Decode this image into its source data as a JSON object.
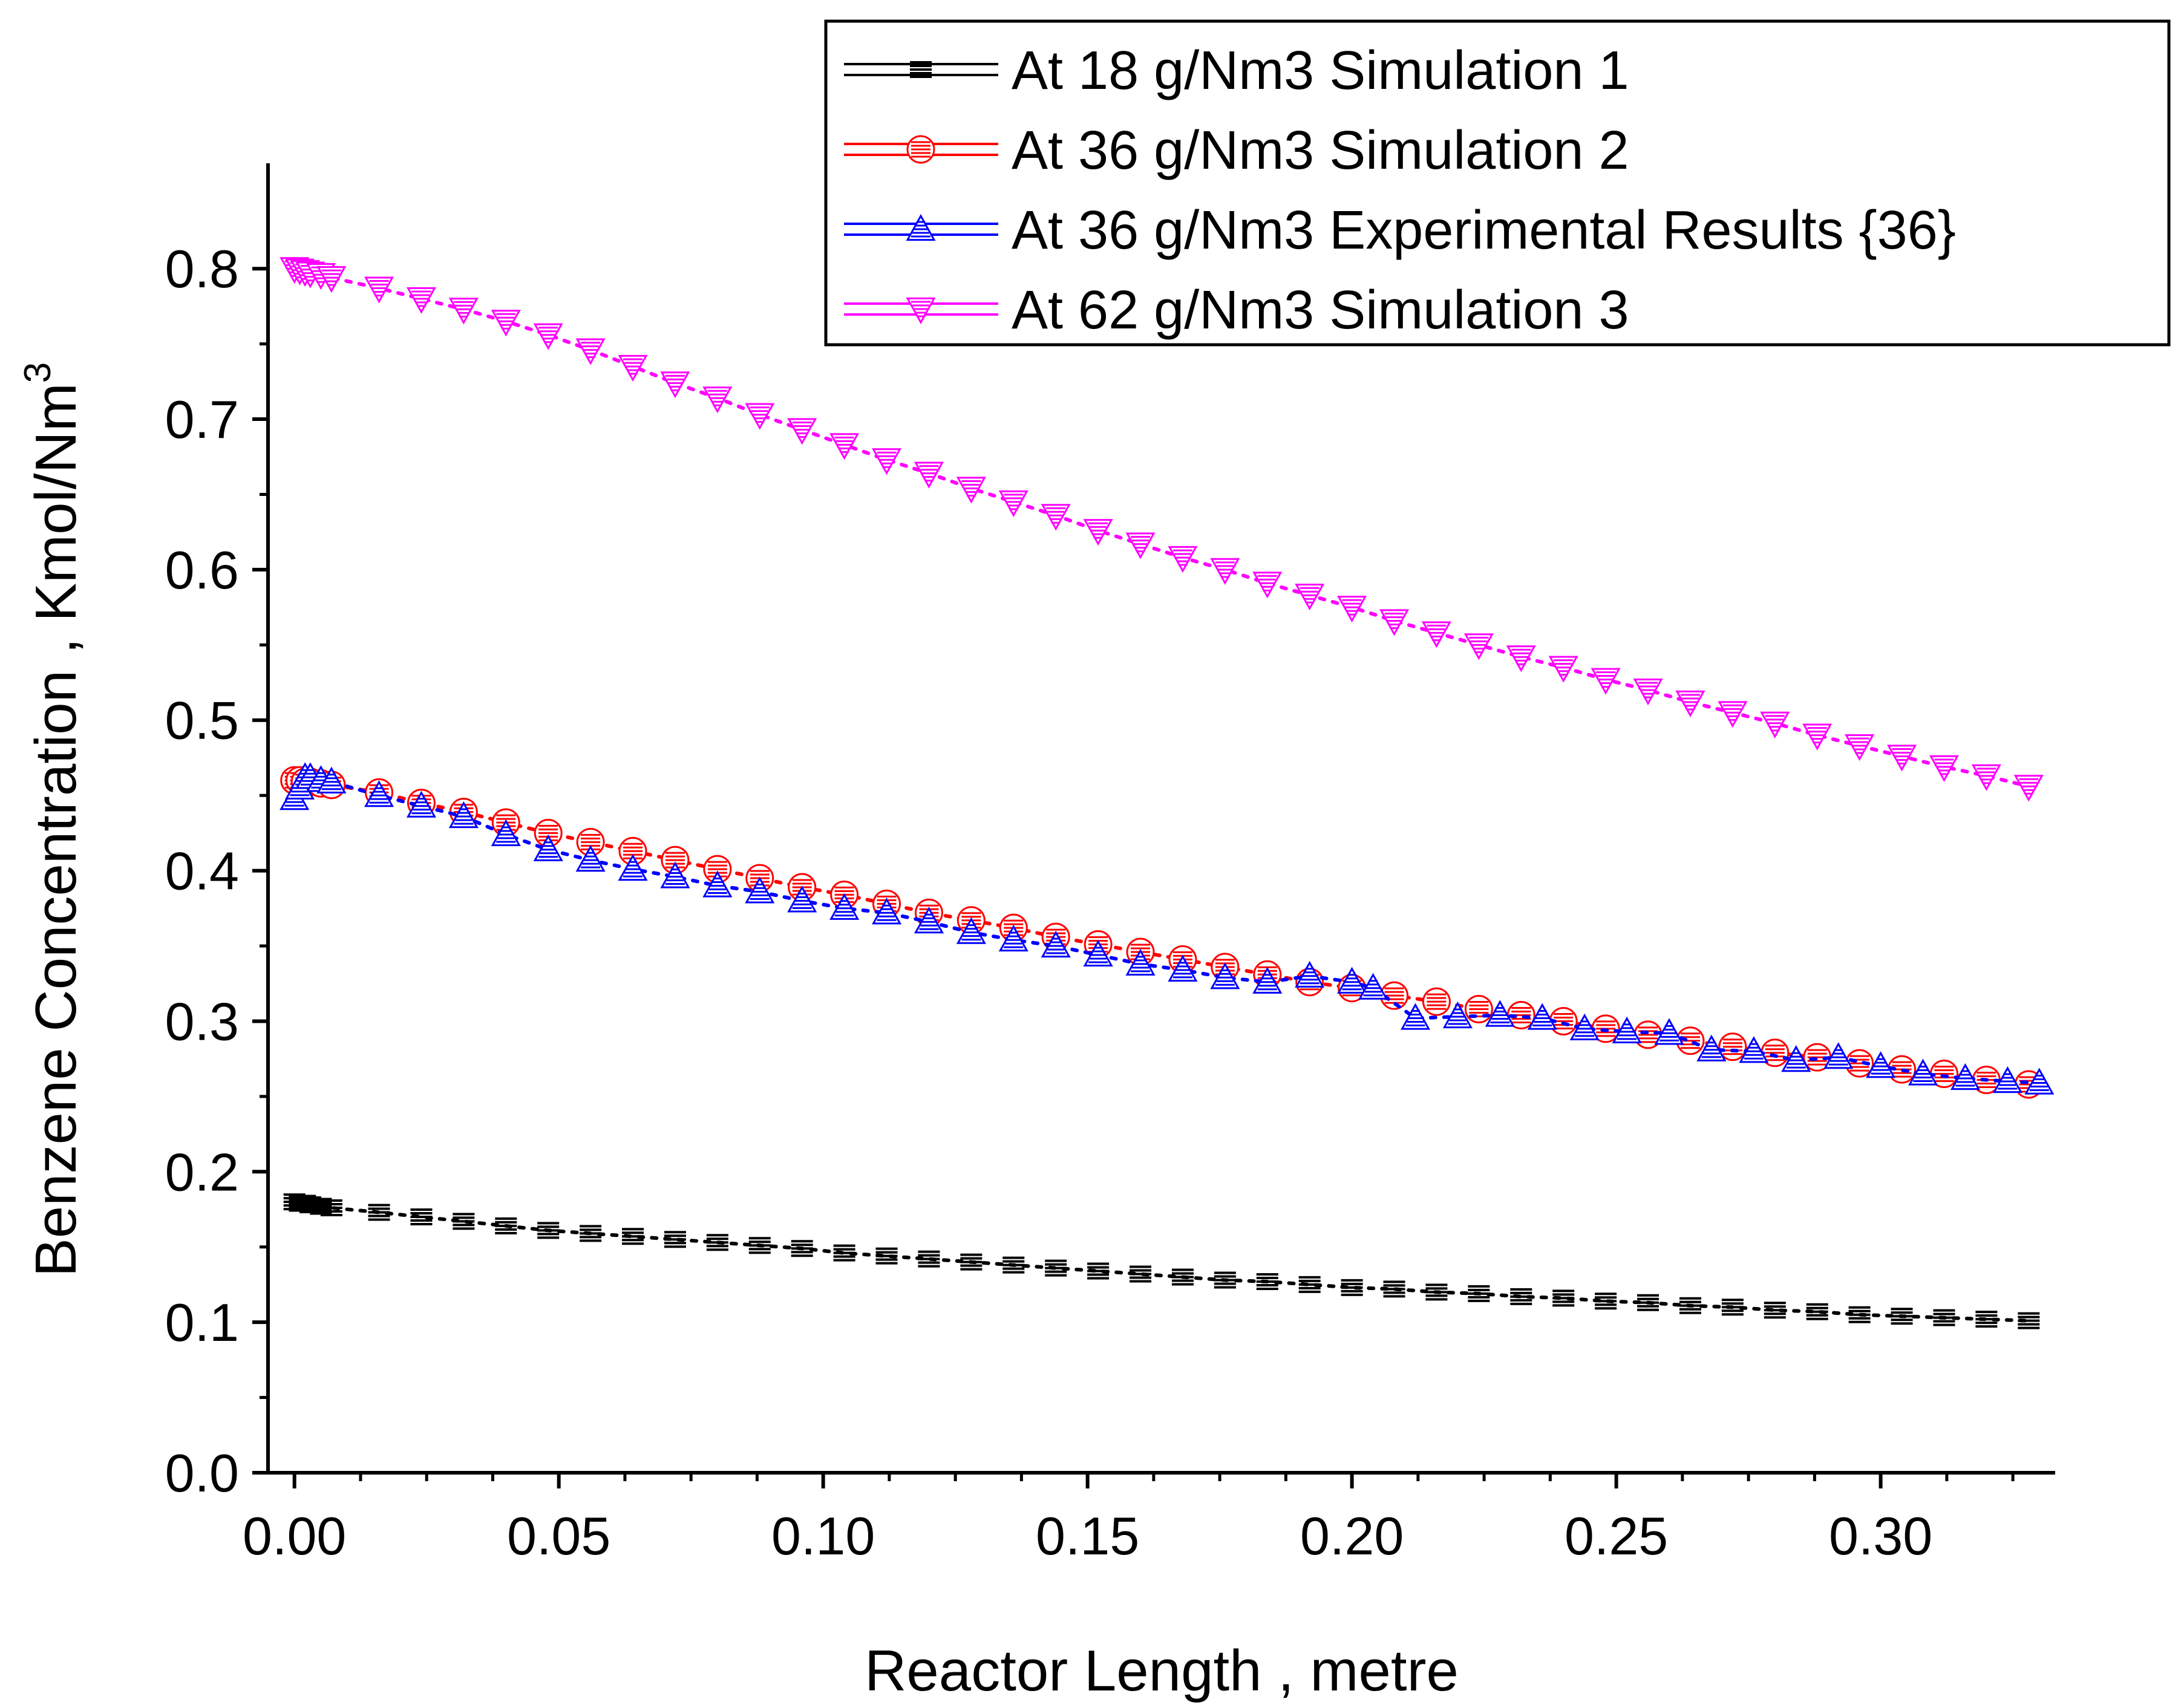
{
  "chart_data": {
    "type": "line",
    "title": "",
    "xlabel": "Reactor Length , metre",
    "ylabel": "Benzene Concentration , Kmol/Nm",
    "ylabel_superscript": "3",
    "xlim": [
      -0.005,
      0.333
    ],
    "ylim": [
      0.0,
      0.87
    ],
    "x_ticks": [
      "0.00",
      "0.05",
      "0.10",
      "0.15",
      "0.20",
      "0.25",
      "0.30"
    ],
    "y_ticks": [
      "0.0",
      "0.1",
      "0.2",
      "0.3",
      "0.4",
      "0.5",
      "0.6",
      "0.7",
      "0.8"
    ],
    "legend_position": "top-right",
    "series": [
      {
        "name": "At 18 g/Nm3 Simulation 1",
        "color": "#000000",
        "marker": "bars",
        "points": [
          [
            0.0,
            0.18
          ],
          [
            0.001,
            0.179
          ],
          [
            0.002,
            0.179
          ],
          [
            0.003,
            0.178
          ],
          [
            0.005,
            0.177
          ],
          [
            0.007,
            0.176
          ],
          [
            0.016,
            0.173
          ],
          [
            0.024,
            0.17
          ],
          [
            0.032,
            0.167
          ],
          [
            0.04,
            0.164
          ],
          [
            0.048,
            0.161
          ],
          [
            0.056,
            0.159
          ],
          [
            0.064,
            0.157
          ],
          [
            0.072,
            0.155
          ],
          [
            0.08,
            0.153
          ],
          [
            0.088,
            0.151
          ],
          [
            0.096,
            0.149
          ],
          [
            0.104,
            0.146
          ],
          [
            0.112,
            0.144
          ],
          [
            0.12,
            0.142
          ],
          [
            0.128,
            0.14
          ],
          [
            0.136,
            0.138
          ],
          [
            0.144,
            0.136
          ],
          [
            0.152,
            0.134
          ],
          [
            0.16,
            0.132
          ],
          [
            0.168,
            0.13
          ],
          [
            0.176,
            0.128
          ],
          [
            0.184,
            0.127
          ],
          [
            0.192,
            0.125
          ],
          [
            0.2,
            0.123
          ],
          [
            0.208,
            0.122
          ],
          [
            0.216,
            0.12
          ],
          [
            0.224,
            0.119
          ],
          [
            0.232,
            0.117
          ],
          [
            0.24,
            0.116
          ],
          [
            0.248,
            0.114
          ],
          [
            0.256,
            0.113
          ],
          [
            0.264,
            0.111
          ],
          [
            0.272,
            0.11
          ],
          [
            0.28,
            0.108
          ],
          [
            0.288,
            0.107
          ],
          [
            0.296,
            0.105
          ],
          [
            0.304,
            0.104
          ],
          [
            0.312,
            0.103
          ],
          [
            0.32,
            0.102
          ],
          [
            0.328,
            0.101
          ]
        ]
      },
      {
        "name": "At 36 g/Nm3 Simulation 2",
        "color": "#ff0000",
        "marker": "circle",
        "points": [
          [
            0.0,
            0.46
          ],
          [
            0.001,
            0.46
          ],
          [
            0.002,
            0.459
          ],
          [
            0.003,
            0.459
          ],
          [
            0.005,
            0.458
          ],
          [
            0.007,
            0.457
          ],
          [
            0.016,
            0.452
          ],
          [
            0.024,
            0.445
          ],
          [
            0.032,
            0.439
          ],
          [
            0.04,
            0.432
          ],
          [
            0.048,
            0.425
          ],
          [
            0.056,
            0.419
          ],
          [
            0.064,
            0.413
          ],
          [
            0.072,
            0.407
          ],
          [
            0.08,
            0.401
          ],
          [
            0.088,
            0.395
          ],
          [
            0.096,
            0.389
          ],
          [
            0.104,
            0.384
          ],
          [
            0.112,
            0.378
          ],
          [
            0.12,
            0.372
          ],
          [
            0.128,
            0.367
          ],
          [
            0.136,
            0.362
          ],
          [
            0.144,
            0.356
          ],
          [
            0.152,
            0.351
          ],
          [
            0.16,
            0.346
          ],
          [
            0.168,
            0.341
          ],
          [
            0.176,
            0.336
          ],
          [
            0.184,
            0.331
          ],
          [
            0.192,
            0.326
          ],
          [
            0.2,
            0.322
          ],
          [
            0.208,
            0.317
          ],
          [
            0.216,
            0.313
          ],
          [
            0.224,
            0.308
          ],
          [
            0.232,
            0.304
          ],
          [
            0.24,
            0.3
          ],
          [
            0.248,
            0.295
          ],
          [
            0.256,
            0.291
          ],
          [
            0.264,
            0.287
          ],
          [
            0.272,
            0.283
          ],
          [
            0.28,
            0.279
          ],
          [
            0.288,
            0.276
          ],
          [
            0.296,
            0.272
          ],
          [
            0.304,
            0.268
          ],
          [
            0.312,
            0.265
          ],
          [
            0.32,
            0.261
          ],
          [
            0.328,
            0.258
          ]
        ]
      },
      {
        "name": "At 36 g/Nm3 Experimental Results {36}",
        "color": "#0000ff",
        "marker": "triangle-up",
        "points": [
          [
            0.0,
            0.448
          ],
          [
            0.001,
            0.455
          ],
          [
            0.002,
            0.462
          ],
          [
            0.003,
            0.462
          ],
          [
            0.005,
            0.46
          ],
          [
            0.007,
            0.459
          ],
          [
            0.016,
            0.45
          ],
          [
            0.024,
            0.443
          ],
          [
            0.032,
            0.436
          ],
          [
            0.04,
            0.424
          ],
          [
            0.048,
            0.414
          ],
          [
            0.056,
            0.407
          ],
          [
            0.064,
            0.401
          ],
          [
            0.072,
            0.396
          ],
          [
            0.08,
            0.39
          ],
          [
            0.088,
            0.386
          ],
          [
            0.096,
            0.38
          ],
          [
            0.104,
            0.375
          ],
          [
            0.112,
            0.372
          ],
          [
            0.12,
            0.366
          ],
          [
            0.128,
            0.359
          ],
          [
            0.136,
            0.354
          ],
          [
            0.144,
            0.35
          ],
          [
            0.152,
            0.344
          ],
          [
            0.16,
            0.338
          ],
          [
            0.168,
            0.334
          ],
          [
            0.176,
            0.329
          ],
          [
            0.184,
            0.326
          ],
          [
            0.192,
            0.33
          ],
          [
            0.2,
            0.326
          ],
          [
            0.204,
            0.322
          ],
          [
            0.212,
            0.302
          ],
          [
            0.22,
            0.303
          ],
          [
            0.228,
            0.304
          ],
          [
            0.236,
            0.302
          ],
          [
            0.244,
            0.295
          ],
          [
            0.252,
            0.293
          ],
          [
            0.26,
            0.292
          ],
          [
            0.268,
            0.281
          ],
          [
            0.276,
            0.28
          ],
          [
            0.284,
            0.274
          ],
          [
            0.292,
            0.276
          ],
          [
            0.3,
            0.27
          ],
          [
            0.308,
            0.265
          ],
          [
            0.316,
            0.262
          ],
          [
            0.324,
            0.26
          ],
          [
            0.33,
            0.259
          ]
        ]
      },
      {
        "name": "At 62 g/Nm3 Simulation 3",
        "color": "#ff00ff",
        "marker": "triangle-down",
        "points": [
          [
            0.0,
            0.8
          ],
          [
            0.001,
            0.799
          ],
          [
            0.002,
            0.798
          ],
          [
            0.003,
            0.797
          ],
          [
            0.005,
            0.796
          ],
          [
            0.007,
            0.794
          ],
          [
            0.016,
            0.787
          ],
          [
            0.024,
            0.78
          ],
          [
            0.032,
            0.773
          ],
          [
            0.04,
            0.765
          ],
          [
            0.048,
            0.756
          ],
          [
            0.056,
            0.746
          ],
          [
            0.064,
            0.735
          ],
          [
            0.072,
            0.724
          ],
          [
            0.08,
            0.714
          ],
          [
            0.088,
            0.703
          ],
          [
            0.096,
            0.693
          ],
          [
            0.104,
            0.683
          ],
          [
            0.112,
            0.673
          ],
          [
            0.12,
            0.664
          ],
          [
            0.128,
            0.654
          ],
          [
            0.136,
            0.645
          ],
          [
            0.144,
            0.636
          ],
          [
            0.152,
            0.626
          ],
          [
            0.16,
            0.617
          ],
          [
            0.168,
            0.608
          ],
          [
            0.176,
            0.6
          ],
          [
            0.184,
            0.591
          ],
          [
            0.192,
            0.583
          ],
          [
            0.2,
            0.575
          ],
          [
            0.208,
            0.566
          ],
          [
            0.216,
            0.558
          ],
          [
            0.224,
            0.55
          ],
          [
            0.232,
            0.542
          ],
          [
            0.24,
            0.535
          ],
          [
            0.248,
            0.527
          ],
          [
            0.256,
            0.52
          ],
          [
            0.264,
            0.512
          ],
          [
            0.272,
            0.505
          ],
          [
            0.28,
            0.498
          ],
          [
            0.288,
            0.49
          ],
          [
            0.296,
            0.483
          ],
          [
            0.304,
            0.476
          ],
          [
            0.312,
            0.469
          ],
          [
            0.32,
            0.463
          ],
          [
            0.328,
            0.456
          ]
        ]
      }
    ]
  }
}
